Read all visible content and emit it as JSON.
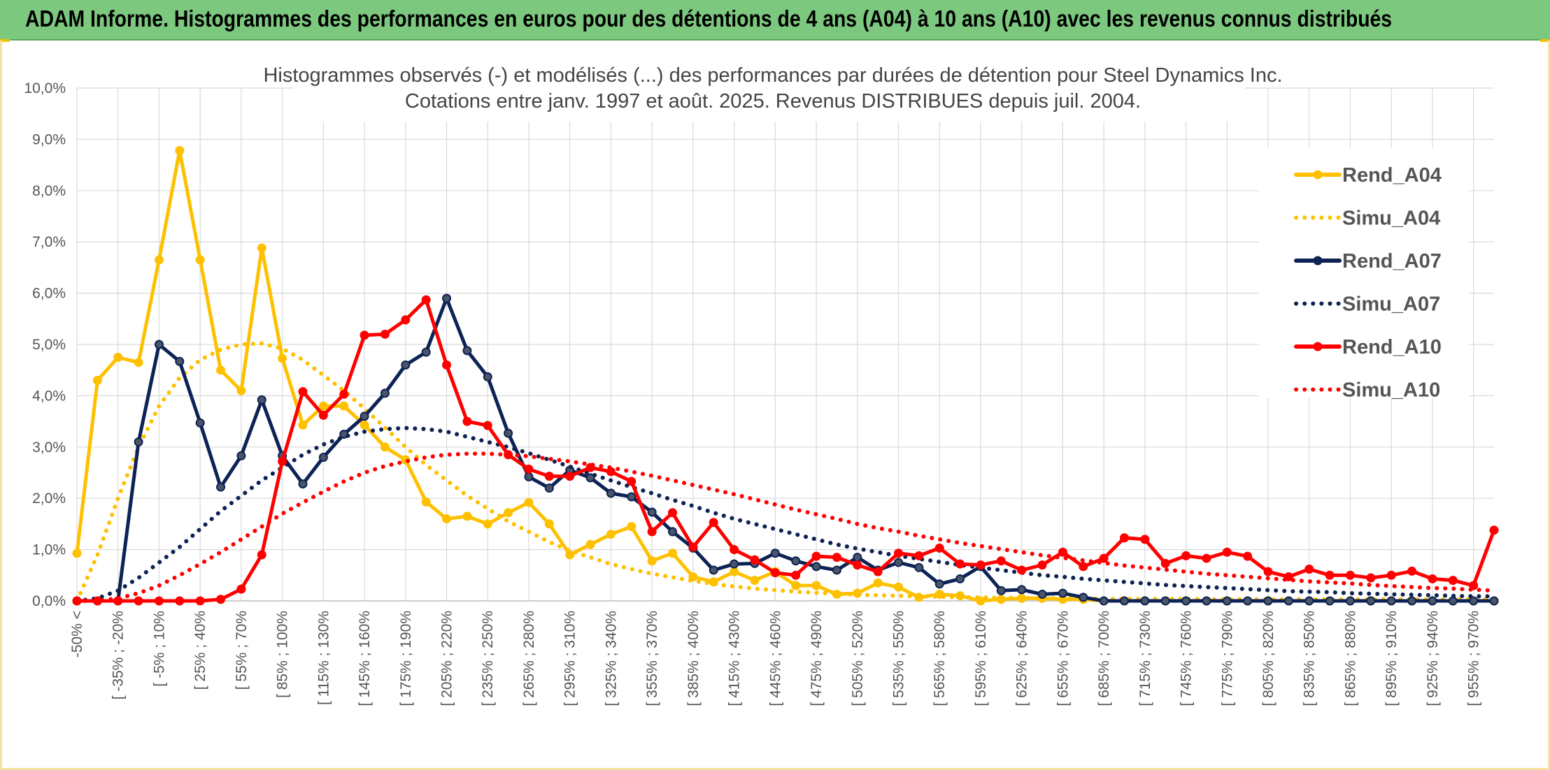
{
  "banner": {
    "title": "ADAM Informe. Histogrammes des performances en euros pour des détentions de 4 ans (A04) à 10 ans (A10) avec les revenus connus distribués"
  },
  "chart_data": {
    "type": "line",
    "title_lines": [
      "Histogrammes observés (-) et modélisés (...) des performances par durées de détention pour Steel Dynamics Inc.",
      "Cotations entre janv. 1997 et août. 2025. Revenus DISTRIBUES depuis juil. 2004."
    ],
    "ylim": [
      0,
      10
    ],
    "y_ticks": [
      "0,0%",
      "1,0%",
      "2,0%",
      "3,0%",
      "4,0%",
      "5,0%",
      "6,0%",
      "7,0%",
      "8,0%",
      "9,0%",
      "10,0%"
    ],
    "grid": true,
    "legend_position": "right",
    "x_tick_labels": [
      "-50% <",
      "[ -35% ; -20%",
      "[ -5% ; 10%",
      "[ 25% ; 40%",
      "[ 55% ; 70%",
      "[ 85% ; 100%",
      "[ 115% ; 130%",
      "[ 145% ; 160%",
      "[ 175% ; 190%",
      "[ 205% ; 220%",
      "[ 235% ; 250%",
      "[ 265% ; 280%",
      "[ 295% ; 310%",
      "[ 325% ; 340%",
      "[ 355% ; 370%",
      "[ 385% ; 400%",
      "[ 415% ; 430%",
      "[ 445% ; 460%",
      "[ 475% ; 490%",
      "[ 505% ; 520%",
      "[ 535% ; 550%",
      "[ 565% ; 580%",
      "[ 595% ; 610%",
      "[ 625% ; 640%",
      "[ 655% ; 670%",
      "[ 685% ; 700%",
      "[ 715% ; 730%",
      "[ 745% ; 760%",
      "[ 775% ; 790%",
      "[ 805% ; 820%",
      "[ 835% ; 850%",
      "[ 865% ; 880%",
      "[ 895% ; 910%",
      "[ 925% ; 940%",
      "[ 955% ; 970%"
    ],
    "n_points": 70,
    "series": [
      {
        "name": "Rend_A04",
        "style": "solid",
        "color": "#FFC000",
        "markers": true,
        "values": [
          0.93,
          4.3,
          4.75,
          4.65,
          6.65,
          8.78,
          6.65,
          4.5,
          4.1,
          6.88,
          4.73,
          3.43,
          3.8,
          3.8,
          3.43,
          3.0,
          2.75,
          1.93,
          1.6,
          1.65,
          1.5,
          1.72,
          1.92,
          1.5,
          0.9,
          1.1,
          1.3,
          1.45,
          0.78,
          0.93,
          0.47,
          0.37,
          0.57,
          0.4,
          0.57,
          0.3,
          0.3,
          0.13,
          0.15,
          0.35,
          0.27,
          0.07,
          0.13,
          0.1,
          0.0,
          0.03,
          0.05,
          0.05,
          0.03,
          0.03,
          0.0,
          0.0,
          0.0,
          0.0,
          0.0,
          0.0,
          0.0,
          0.0,
          0.0,
          0.0,
          0.0,
          0.0,
          0.0,
          0.0,
          0.0,
          0.0,
          0.0,
          0.0,
          0.0,
          0.0
        ]
      },
      {
        "name": "Simu_A04",
        "style": "dotted",
        "color": "#FFC000",
        "markers": false,
        "values": [
          0.0,
          0.9,
          2.0,
          3.0,
          3.8,
          4.35,
          4.7,
          4.9,
          5.0,
          5.02,
          4.92,
          4.7,
          4.4,
          4.1,
          3.75,
          3.38,
          3.0,
          2.65,
          2.35,
          2.05,
          1.8,
          1.55,
          1.35,
          1.15,
          0.98,
          0.85,
          0.72,
          0.62,
          0.53,
          0.46,
          0.39,
          0.33,
          0.28,
          0.24,
          0.21,
          0.18,
          0.16,
          0.14,
          0.12,
          0.11,
          0.1,
          0.09,
          0.08,
          0.07,
          0.07,
          0.06,
          0.06,
          0.05,
          0.05,
          0.05,
          0.04,
          0.04,
          0.04,
          0.04,
          0.04,
          0.03,
          0.03,
          0.03,
          0.03,
          0.03,
          0.03,
          0.03,
          0.03,
          0.03,
          0.03,
          0.03,
          0.03,
          0.03,
          0.03,
          0.03
        ]
      },
      {
        "name": "Rend_A07",
        "style": "solid",
        "color": "#0D2255",
        "markers": true,
        "values": [
          0.0,
          0.0,
          0.0,
          3.1,
          5.0,
          4.67,
          3.47,
          2.22,
          2.83,
          3.92,
          2.83,
          2.28,
          2.8,
          3.25,
          3.6,
          4.05,
          4.6,
          4.85,
          5.9,
          4.88,
          4.37,
          3.27,
          2.42,
          2.2,
          2.55,
          2.4,
          2.1,
          2.03,
          1.73,
          1.35,
          1.03,
          0.6,
          0.72,
          0.73,
          0.93,
          0.78,
          0.67,
          0.6,
          0.85,
          0.6,
          0.75,
          0.65,
          0.33,
          0.43,
          0.67,
          0.2,
          0.22,
          0.13,
          0.15,
          0.07,
          0.0,
          0.0,
          0.0,
          0.0,
          0.0,
          0.0,
          0.0,
          0.0,
          0.0,
          0.0,
          0.0,
          0.0,
          0.0,
          0.0,
          0.0,
          0.0,
          0.0,
          0.0,
          0.0,
          0.0
        ]
      },
      {
        "name": "Simu_A07",
        "style": "dotted",
        "color": "#0D2255",
        "markers": false,
        "values": [
          0.0,
          0.05,
          0.2,
          0.45,
          0.75,
          1.05,
          1.4,
          1.75,
          2.05,
          2.35,
          2.6,
          2.85,
          3.05,
          3.2,
          3.3,
          3.35,
          3.37,
          3.35,
          3.3,
          3.2,
          3.1,
          3.0,
          2.88,
          2.75,
          2.62,
          2.48,
          2.35,
          2.22,
          2.1,
          1.97,
          1.85,
          1.72,
          1.6,
          1.5,
          1.4,
          1.3,
          1.2,
          1.1,
          1.02,
          0.95,
          0.88,
          0.82,
          0.76,
          0.7,
          0.65,
          0.6,
          0.55,
          0.5,
          0.47,
          0.43,
          0.4,
          0.37,
          0.34,
          0.31,
          0.29,
          0.27,
          0.25,
          0.23,
          0.21,
          0.19,
          0.18,
          0.17,
          0.15,
          0.14,
          0.13,
          0.12,
          0.11,
          0.1,
          0.09,
          0.09
        ]
      },
      {
        "name": "Rend_A10",
        "style": "solid",
        "color": "#FF0000",
        "markers": true,
        "values": [
          0.0,
          0.0,
          0.0,
          0.0,
          0.0,
          0.0,
          0.0,
          0.03,
          0.23,
          0.9,
          2.72,
          4.08,
          3.62,
          4.03,
          5.18,
          5.2,
          5.48,
          5.87,
          4.6,
          3.5,
          3.42,
          2.85,
          2.57,
          2.43,
          2.43,
          2.6,
          2.52,
          2.33,
          1.35,
          1.72,
          1.05,
          1.53,
          1.0,
          0.8,
          0.55,
          0.5,
          0.87,
          0.85,
          0.7,
          0.57,
          0.93,
          0.88,
          1.03,
          0.72,
          0.7,
          0.78,
          0.6,
          0.7,
          0.95,
          0.67,
          0.83,
          1.23,
          1.2,
          0.73,
          0.88,
          0.83,
          0.95,
          0.87,
          0.57,
          0.47,
          0.62,
          0.5,
          0.5,
          0.45,
          0.5,
          0.58,
          0.43,
          0.4,
          0.3,
          1.38
        ]
      },
      {
        "name": "Simu_A10",
        "style": "dotted",
        "color": "#FF0000",
        "markers": false,
        "values": [
          0.0,
          0.0,
          0.05,
          0.15,
          0.3,
          0.5,
          0.72,
          0.95,
          1.2,
          1.45,
          1.7,
          1.92,
          2.13,
          2.33,
          2.5,
          2.63,
          2.72,
          2.8,
          2.85,
          2.87,
          2.87,
          2.85,
          2.82,
          2.77,
          2.72,
          2.66,
          2.6,
          2.52,
          2.44,
          2.35,
          2.26,
          2.17,
          2.08,
          1.98,
          1.88,
          1.78,
          1.69,
          1.6,
          1.5,
          1.42,
          1.35,
          1.27,
          1.2,
          1.13,
          1.07,
          1.01,
          0.95,
          0.89,
          0.84,
          0.79,
          0.74,
          0.69,
          0.65,
          0.61,
          0.57,
          0.53,
          0.5,
          0.47,
          0.44,
          0.41,
          0.38,
          0.36,
          0.34,
          0.31,
          0.29,
          0.27,
          0.25,
          0.24,
          0.22,
          0.2
        ]
      }
    ]
  }
}
